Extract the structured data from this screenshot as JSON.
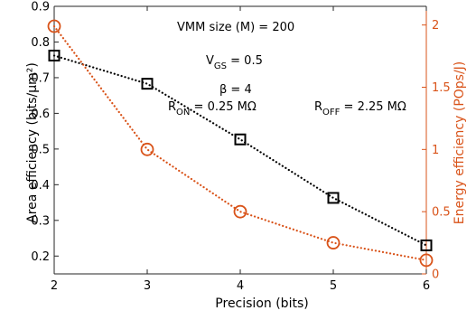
{
  "chart_data": {
    "type": "line",
    "x": [
      2,
      3,
      4,
      5,
      6
    ],
    "xlabel": "Precision (bits)",
    "xlim": [
      2,
      6
    ],
    "xticks": [
      "2",
      "3",
      "4",
      "5",
      "6"
    ],
    "grid": false,
    "axes": {
      "left": {
        "ylabel": "Area efficiency (bits/μm²)",
        "ylim": [
          0.15,
          0.9
        ],
        "yticks": [
          "0.2",
          "0.3",
          "0.4",
          "0.5",
          "0.6",
          "0.7",
          "0.8",
          "0.9"
        ],
        "color": "#000000"
      },
      "right": {
        "ylabel": "Energy efficiency (POps/J)",
        "ylim": [
          0,
          2.15
        ],
        "yticks": [
          "0",
          "0.5",
          "1",
          "1.5",
          "2"
        ],
        "color": "#d95319"
      }
    },
    "series": [
      {
        "axis": "left",
        "marker": "square",
        "line": "dotted",
        "color": "#000000",
        "values": [
          0.762,
          0.683,
          0.527,
          0.363,
          0.23
        ]
      },
      {
        "axis": "right",
        "marker": "circle",
        "line": "dotted",
        "color": "#d95319",
        "values": [
          1.99,
          1.0,
          0.5,
          0.25,
          0.11
        ]
      }
    ],
    "annotations": {
      "vmm": "VMM size (M) = 200",
      "vgs_main": "V",
      "vgs_sub": "GS",
      "vgs_value": " = 0.5",
      "beta": "β = 4",
      "ron_main": "R",
      "ron_sub": "ON",
      "ron_value": " = 0.25 MΩ",
      "roff_main": "R",
      "roff_sub": "OFF",
      "roff_value": " = 2.25 MΩ"
    }
  }
}
